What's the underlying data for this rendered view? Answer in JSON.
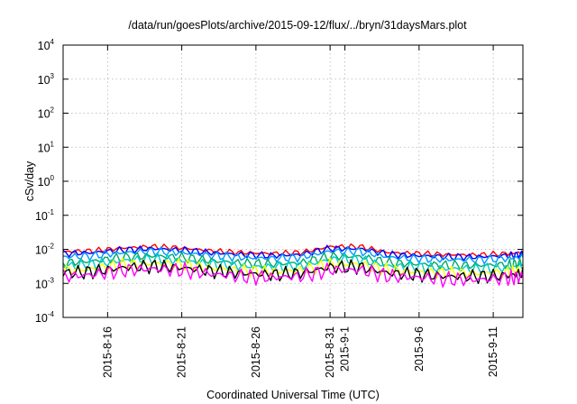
{
  "chart_data": {
    "type": "line",
    "title": "/data/run/goesPlots/archive/2015-09-12/flux/../bryn/31daysMars.plot",
    "xlabel": "Coordinated Universal Time (UTC)",
    "ylabel": "cSv/day",
    "yscale": "log",
    "ylim": [
      0.0001,
      10000
    ],
    "xlim": [
      "2015-08-13",
      "2015-09-13"
    ],
    "grid": true,
    "y_ticks": [
      {
        "base": "10",
        "exp": "-4"
      },
      {
        "base": "10",
        "exp": "-3"
      },
      {
        "base": "10",
        "exp": "-2"
      },
      {
        "base": "10",
        "exp": "-1"
      },
      {
        "base": "10",
        "exp": "0"
      },
      {
        "base": "10",
        "exp": "1"
      },
      {
        "base": "10",
        "exp": "2"
      },
      {
        "base": "10",
        "exp": "3"
      },
      {
        "base": "10",
        "exp": "4"
      }
    ],
    "x_ticks": [
      {
        "date": "2015-08-16",
        "label": "2015-8-16"
      },
      {
        "date": "2015-08-21",
        "label": "2015-8-21"
      },
      {
        "date": "2015-08-26",
        "label": "2015-8-26"
      },
      {
        "date": "2015-08-31",
        "label": "2015-8-31"
      },
      {
        "date": "2015-09-01",
        "label": "2015-9-1"
      },
      {
        "date": "2015-09-06",
        "label": "2015-9-6"
      },
      {
        "date": "2015-09-11",
        "label": "2015-9-11"
      }
    ],
    "x": [
      "2015-08-13",
      "2015-08-15",
      "2015-08-17",
      "2015-08-19",
      "2015-08-21",
      "2015-08-23",
      "2015-08-25",
      "2015-08-27",
      "2015-08-29",
      "2015-08-31",
      "2015-09-02",
      "2015-09-04",
      "2015-09-06",
      "2015-09-08",
      "2015-09-10",
      "2015-09-12",
      "2015-09-13"
    ],
    "series": [
      {
        "color": "#ff0000",
        "values": [
          0.0085,
          0.009,
          0.011,
          0.012,
          0.011,
          0.009,
          0.008,
          0.0075,
          0.008,
          0.012,
          0.012,
          0.008,
          0.0075,
          0.007,
          0.0068,
          0.0075,
          0.0082
        ]
      },
      {
        "color": "#0000ff",
        "values": [
          0.0075,
          0.008,
          0.0095,
          0.0105,
          0.0095,
          0.008,
          0.007,
          0.0065,
          0.007,
          0.0105,
          0.0105,
          0.007,
          0.0065,
          0.006,
          0.006,
          0.0065,
          0.0072
        ]
      },
      {
        "color": "#0099ff",
        "values": [
          0.006,
          0.0065,
          0.008,
          0.0088,
          0.008,
          0.0066,
          0.0058,
          0.0054,
          0.0058,
          0.0088,
          0.0088,
          0.0058,
          0.0054,
          0.005,
          0.005,
          0.0054,
          0.006
        ]
      },
      {
        "color": "#00aa66",
        "values": [
          0.004,
          0.0045,
          0.0058,
          0.0064,
          0.0058,
          0.0046,
          0.004,
          0.0037,
          0.004,
          0.0062,
          0.0062,
          0.004,
          0.0037,
          0.0034,
          0.0034,
          0.0036,
          0.004
        ]
      },
      {
        "color": "#00cccc",
        "values": [
          0.0032,
          0.0036,
          0.0047,
          0.0052,
          0.0047,
          0.0037,
          0.0032,
          0.003,
          0.0032,
          0.005,
          0.005,
          0.0032,
          0.003,
          0.0027,
          0.0027,
          0.0029,
          0.0032
        ]
      },
      {
        "color": "#ffff00",
        "values": [
          0.0024,
          0.0027,
          0.0035,
          0.0039,
          0.0035,
          0.0028,
          0.0024,
          0.0022,
          0.0024,
          0.0037,
          0.0037,
          0.0024,
          0.0022,
          0.002,
          0.002,
          0.0021,
          0.0024
        ]
      },
      {
        "color": "#000000",
        "values": [
          0.002,
          0.0022,
          0.0029,
          0.0032,
          0.0029,
          0.0023,
          0.002,
          0.0018,
          0.002,
          0.003,
          0.003,
          0.002,
          0.0018,
          0.0016,
          0.0016,
          0.0017,
          0.002
        ]
      },
      {
        "color": "#ff00ff",
        "values": [
          0.0016,
          0.0018,
          0.0024,
          0.0027,
          0.0024,
          0.0019,
          0.0016,
          0.0015,
          0.0016,
          0.0025,
          0.0025,
          0.0016,
          0.0015,
          0.0013,
          0.0013,
          0.0014,
          0.0016
        ]
      }
    ]
  }
}
